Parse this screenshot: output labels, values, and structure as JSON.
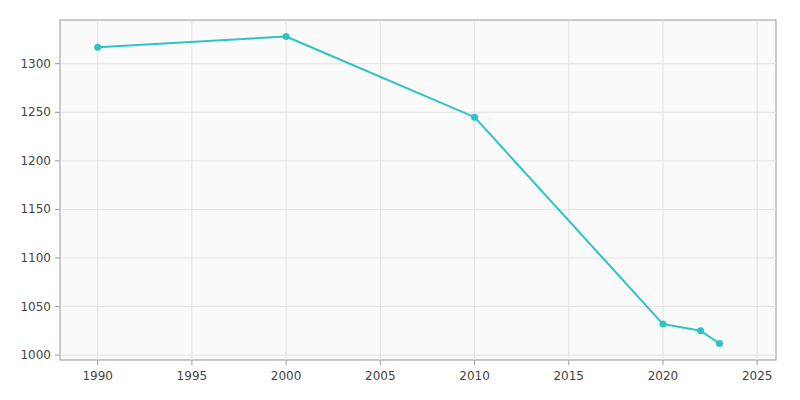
{
  "chart_data": {
    "type": "line",
    "x": [
      1990,
      2000,
      2010,
      2020,
      2022,
      2023
    ],
    "values": [
      1317,
      1328,
      1245,
      1032,
      1025,
      1012
    ],
    "color": "#2ec4c4",
    "marker": "circle",
    "xlim": [
      1988,
      2026
    ],
    "ylim": [
      995,
      1345
    ],
    "xticks": [
      1990,
      1995,
      2000,
      2005,
      2010,
      2015,
      2020,
      2025
    ],
    "yticks": [
      1000,
      1050,
      1100,
      1150,
      1200,
      1250,
      1300
    ],
    "grid": true
  }
}
